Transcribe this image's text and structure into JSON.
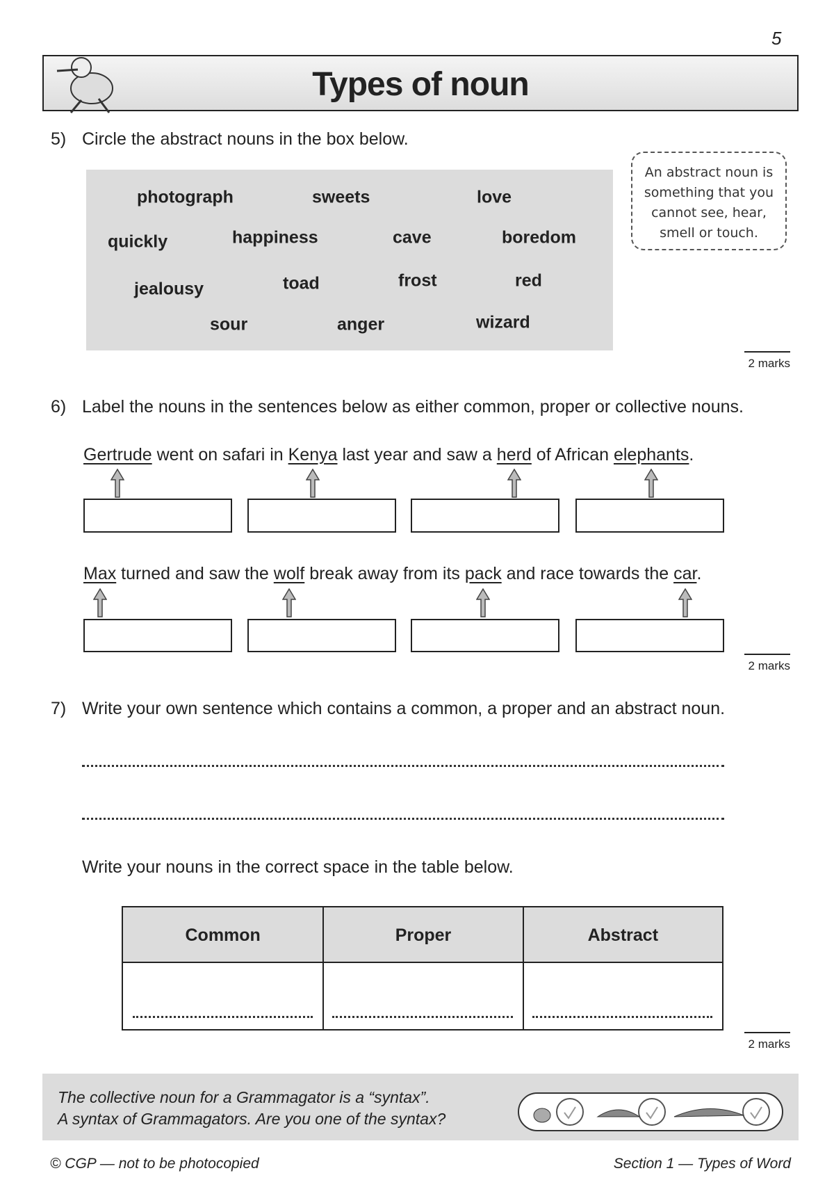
{
  "page_number": "5",
  "header": {
    "title": "Types of noun"
  },
  "questions": [
    {
      "number": "5)",
      "prompt": "Circle the abstract nouns in the box below.",
      "words": [
        "photograph",
        "sweets",
        "love",
        "quickly",
        "happiness",
        "cave",
        "boredom",
        "jealousy",
        "toad",
        "frost",
        "red",
        "sour",
        "anger",
        "wizard"
      ],
      "tip": [
        "An abstract noun is",
        "something that you",
        "cannot see, hear,",
        "smell or touch."
      ],
      "marks": "2 marks"
    },
    {
      "number": "6)",
      "prompt": "Label the nouns in the sentences below as either common, proper or collective nouns.",
      "sentences": [
        [
          "Gertrude",
          " went on safari in ",
          "Kenya",
          " last year and saw a ",
          "herd",
          " of African ",
          "elephants",
          "."
        ],
        [
          "Max",
          " turned and saw the ",
          "wolf",
          " break away from its ",
          "pack",
          " and race towards the ",
          "car",
          "."
        ]
      ],
      "marks": "2 marks"
    },
    {
      "number": "7)",
      "prompt": "Write your own sentence which contains a common, a proper and an abstract noun.",
      "instruction": "Write your nouns in the correct space in the table below.",
      "table": {
        "header": [
          "Common",
          "Proper",
          "Abstract"
        ]
      },
      "marks": "2 marks"
    }
  ],
  "footer": {
    "note": [
      "The collective noun for a Grammagator is a “syntax”.",
      "A syntax of Grammagators.  Are you one of the syntax?"
    ],
    "copyright": "© CGP — not to be photocopied",
    "section": "Section 1 — Types of Word"
  }
}
